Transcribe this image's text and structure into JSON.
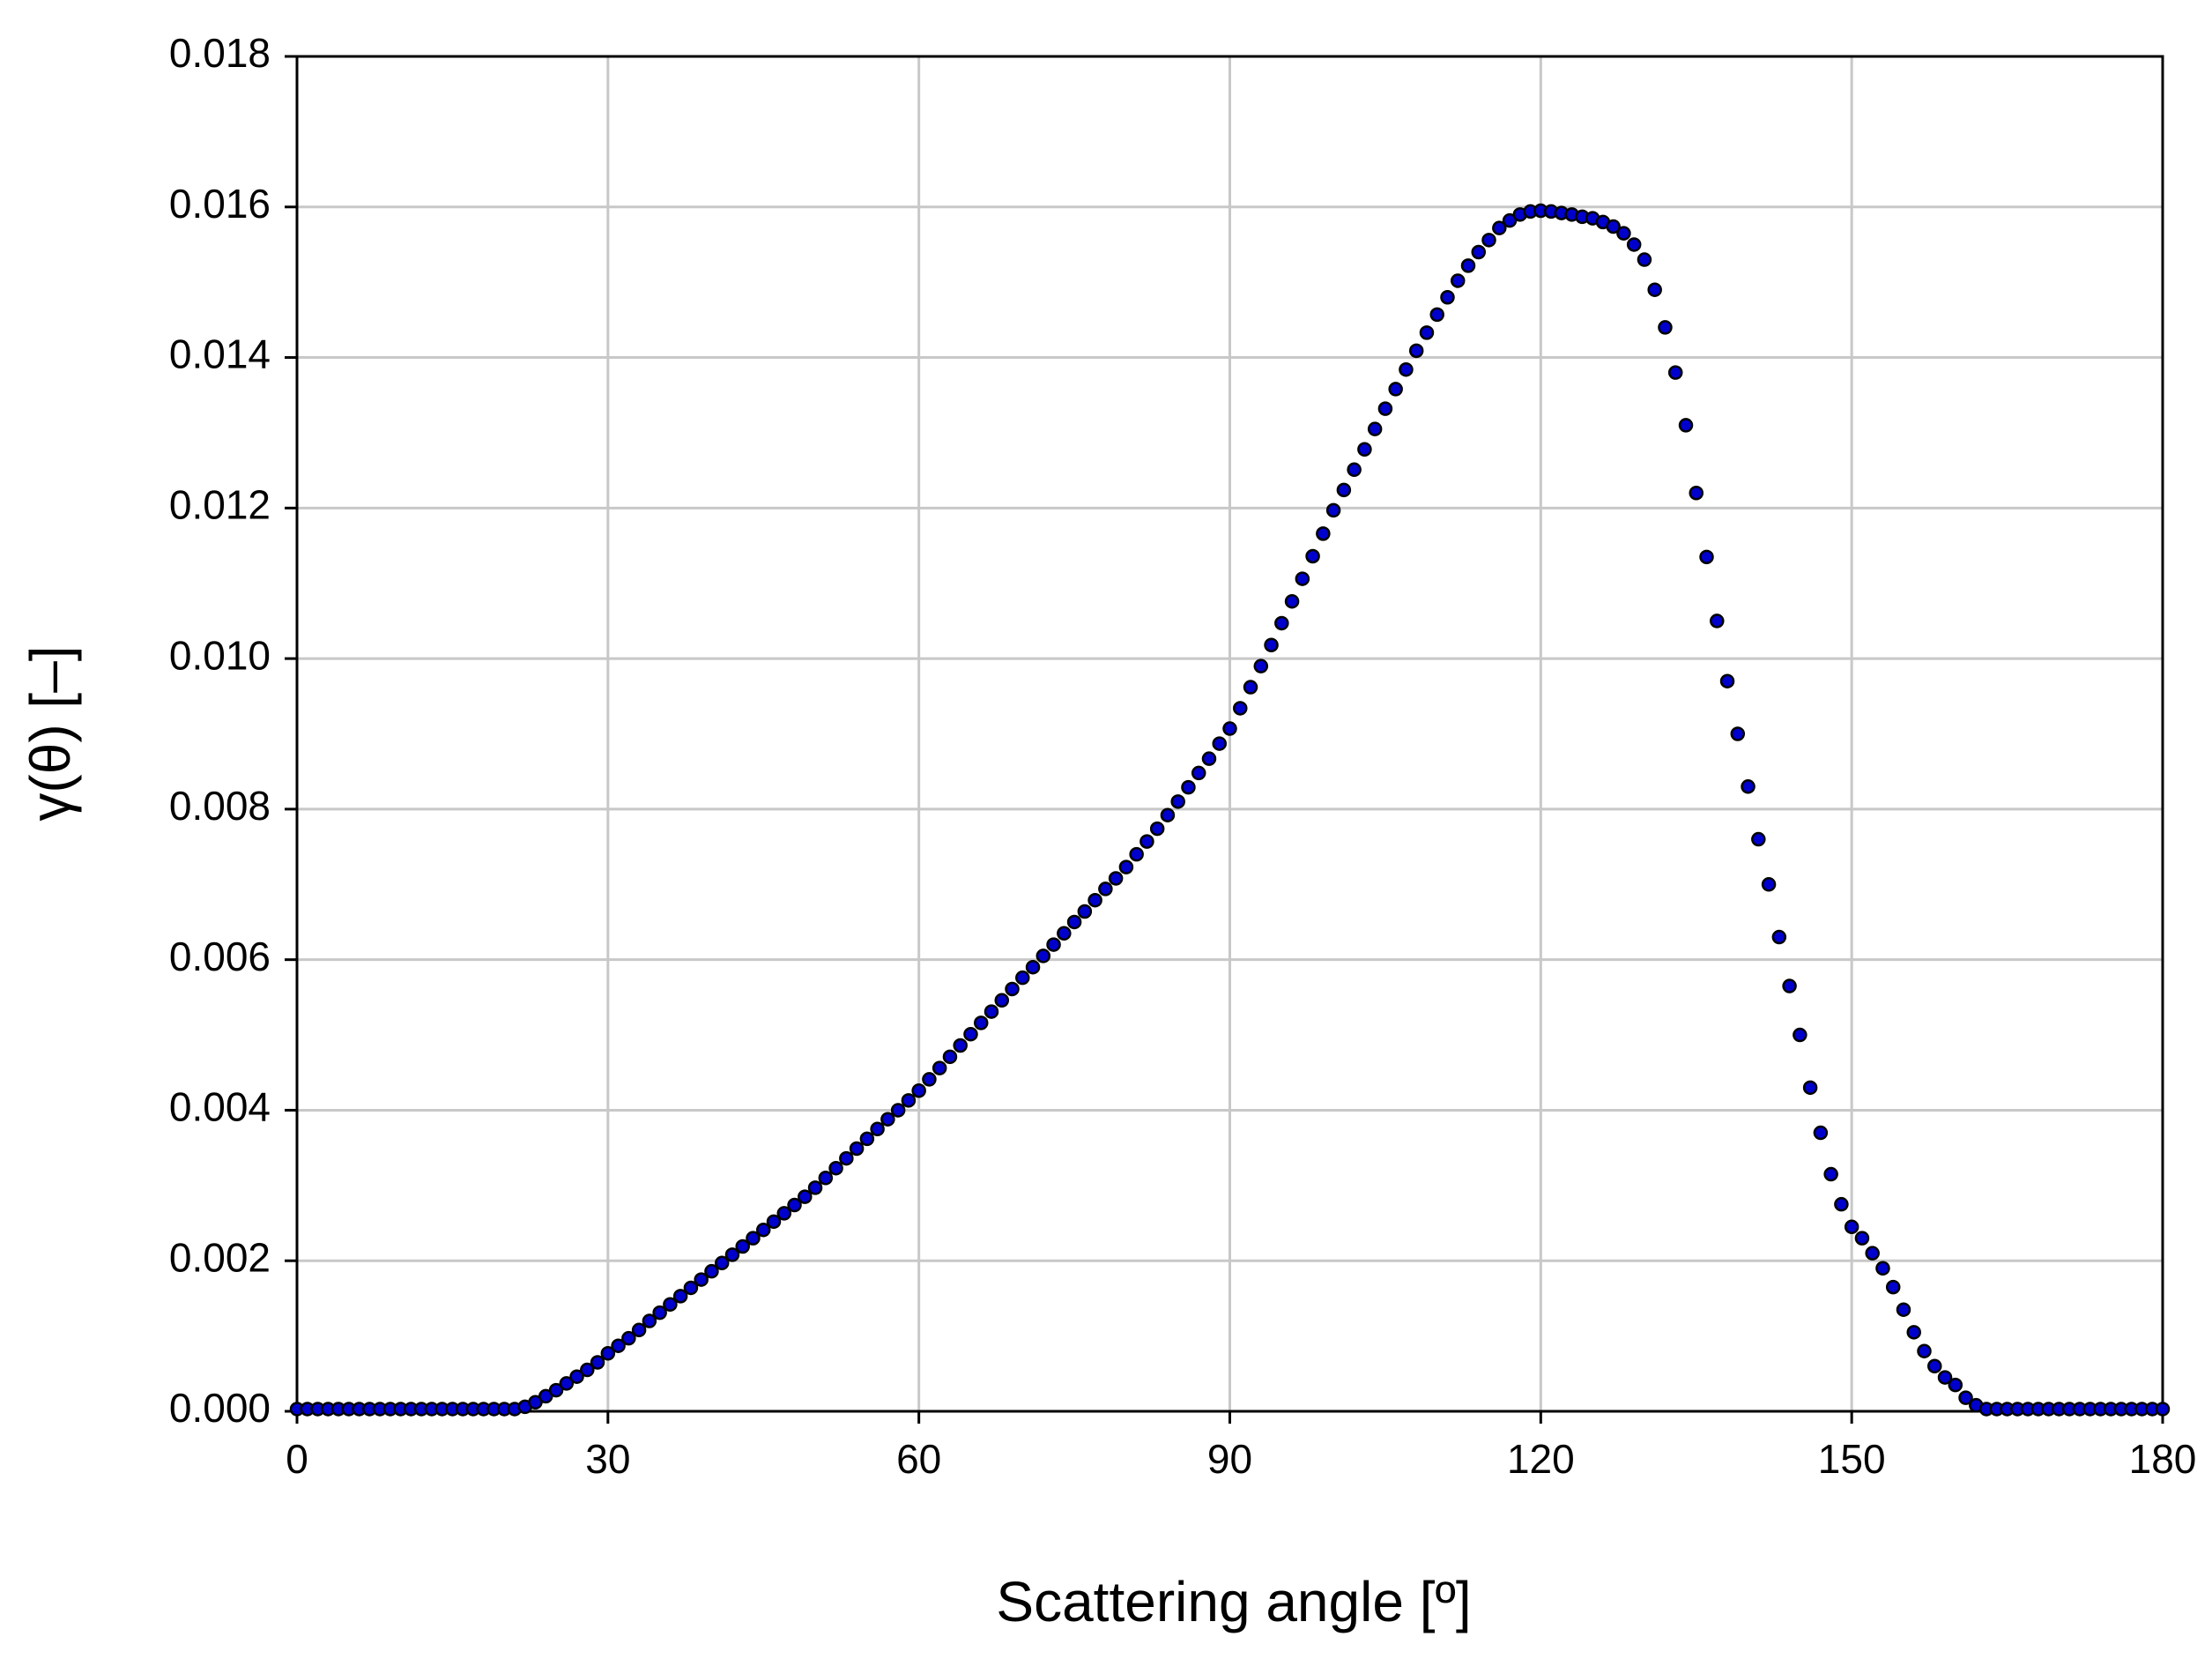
{
  "chart_data": {
    "type": "scatter",
    "xlabel": "Scattering angle [º]",
    "ylabel": "γ(θ) [–]",
    "xlim": [
      0,
      180
    ],
    "ylim": [
      0,
      0.018
    ],
    "xticks": [
      0,
      30,
      60,
      90,
      120,
      150,
      180
    ],
    "yticks": [
      {
        "value": 0,
        "label": "0.000"
      },
      0.002,
      0.004,
      0.006,
      0.008,
      {
        "value": 0.01,
        "label": "0.010"
      },
      0.012,
      0.014,
      0.016,
      0.018
    ],
    "grid": true,
    "series": [
      {
        "color": "#0000cc",
        "x": [
          0,
          1,
          2,
          3,
          4,
          5,
          6,
          7,
          8,
          9,
          10,
          11,
          12,
          13,
          14,
          15,
          16,
          17,
          18,
          19,
          20,
          21,
          22,
          23,
          24,
          25,
          26,
          27,
          28,
          29,
          30,
          31,
          32,
          33,
          34,
          35,
          36,
          37,
          38,
          39,
          40,
          41,
          42,
          43,
          44,
          45,
          46,
          47,
          48,
          49,
          50,
          51,
          52,
          53,
          54,
          55,
          56,
          57,
          58,
          59,
          60,
          61,
          62,
          63,
          64,
          65,
          66,
          67,
          68,
          69,
          70,
          71,
          72,
          73,
          74,
          75,
          76,
          77,
          78,
          79,
          80,
          81,
          82,
          83,
          84,
          85,
          86,
          87,
          88,
          89,
          90,
          91,
          92,
          93,
          94,
          95,
          96,
          97,
          98,
          99,
          100,
          101,
          102,
          103,
          104,
          105,
          106,
          107,
          108,
          109,
          110,
          111,
          112,
          113,
          114,
          115,
          116,
          117,
          118,
          119,
          120,
          121,
          122,
          123,
          124,
          125,
          126,
          127,
          128,
          129,
          130,
          131,
          132,
          133,
          134,
          135,
          136,
          137,
          138,
          139,
          140,
          141,
          142,
          143,
          144,
          145,
          146,
          147,
          148,
          149,
          150,
          151,
          152,
          153,
          154,
          155,
          156,
          157,
          158,
          159,
          160,
          161,
          162,
          163,
          164,
          165,
          166,
          167,
          168,
          169,
          170,
          171,
          172,
          173,
          174,
          175,
          176,
          177,
          178,
          179,
          180
        ],
        "values": [
          3e-05,
          3e-05,
          3e-05,
          3e-05,
          3e-05,
          3e-05,
          3e-05,
          3e-05,
          3e-05,
          3e-05,
          3e-05,
          3e-05,
          3e-05,
          3e-05,
          3e-05,
          3e-05,
          3e-05,
          3e-05,
          3e-05,
          3e-05,
          3e-05,
          3e-05,
          6e-05,
          0.00012,
          0.0002,
          0.00028,
          0.00037,
          0.00046,
          0.00055,
          0.00065,
          0.00077,
          0.00087,
          0.00097,
          0.00108,
          0.0012,
          0.00131,
          0.00142,
          0.00153,
          0.00164,
          0.00175,
          0.00186,
          0.00197,
          0.00208,
          0.00219,
          0.0023,
          0.00241,
          0.00252,
          0.00263,
          0.00274,
          0.00285,
          0.00297,
          0.0031,
          0.00323,
          0.00336,
          0.00349,
          0.00362,
          0.00375,
          0.00388,
          0.004,
          0.00413,
          0.00426,
          0.00441,
          0.00456,
          0.00471,
          0.00486,
          0.00501,
          0.00516,
          0.00531,
          0.00546,
          0.00561,
          0.00576,
          0.0059,
          0.00605,
          0.0062,
          0.00635,
          0.0065,
          0.00664,
          0.00679,
          0.00694,
          0.00708,
          0.00723,
          0.0074,
          0.00757,
          0.00774,
          0.00792,
          0.0081,
          0.00829,
          0.00848,
          0.00867,
          0.00887,
          0.00907,
          0.00934,
          0.00962,
          0.0099,
          0.01018,
          0.01047,
          0.01076,
          0.01106,
          0.01136,
          0.01166,
          0.01197,
          0.01224,
          0.01251,
          0.01278,
          0.01305,
          0.01332,
          0.01358,
          0.01384,
          0.01409,
          0.01433,
          0.01457,
          0.0148,
          0.01502,
          0.01522,
          0.0154,
          0.01556,
          0.01572,
          0.01582,
          0.0159,
          0.01594,
          0.01595,
          0.01594,
          0.01592,
          0.0159,
          0.01587,
          0.01585,
          0.0158,
          0.01574,
          0.01565,
          0.0155,
          0.0153,
          0.0149,
          0.0144,
          0.0138,
          0.0131,
          0.0122,
          0.01135,
          0.0105,
          0.0097,
          0.009,
          0.0083,
          0.0076,
          0.007,
          0.0063,
          0.00565,
          0.005,
          0.0043,
          0.0037,
          0.00315,
          0.00275,
          0.00245,
          0.0023,
          0.0021,
          0.0019,
          0.00165,
          0.00135,
          0.00105,
          0.0008,
          0.0006,
          0.00045,
          0.00035,
          0.00018,
          8e-05,
          3e-05,
          3e-05,
          3e-05,
          3e-05,
          3e-05,
          3e-05,
          3e-05,
          3e-05,
          3e-05,
          3e-05,
          3e-05,
          3e-05,
          3e-05,
          3e-05,
          3e-05,
          3e-05,
          3e-05,
          3e-05
        ]
      }
    ]
  }
}
